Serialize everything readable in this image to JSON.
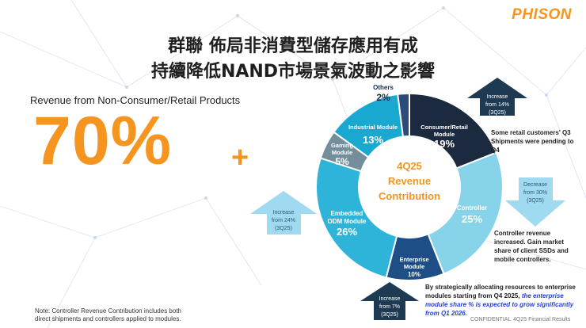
{
  "brand": "PHISON",
  "title_line1": "群聯 佈局非消費型儲存應用有成",
  "title_line2": "持續降低NAND市場景氣波動之影響",
  "subtitle": "Revenue from Non-Consumer/Retail Products",
  "big_value": "70%",
  "big_plus": "+",
  "note": "Note: Controller Revenue Contribution includes both direct shipments and controllers applied to modules.",
  "center_label": [
    "4Q25",
    "Revenue",
    "Contribution"
  ],
  "arrows": {
    "consumer": [
      "Increase",
      "from 14%",
      "(3Q25)"
    ],
    "controller": [
      "Decrease",
      "from 30%",
      "(3Q25)"
    ],
    "embedded": [
      "Increase",
      "from 24%",
      "(3Q25)"
    ],
    "enterprise": [
      "Increase",
      "from 7%",
      "(3Q25)"
    ]
  },
  "annotations": {
    "consumer": "Some retail customers' Q3 Shipments were pending to Q4",
    "controller": "Controller revenue increased. Gain market share of client SSDs and mobile controllers.",
    "enterprise_part1": "By strategically allocating resources to enterprise modules starting from Q4 2025, ",
    "enterprise_part2": "the enterprise module share % is expected to grow significantly from Q1 2026."
  },
  "footer": {
    "confidential": "CONFIDENTIAL",
    "results": "4Q25 Financial Results"
  },
  "colors": {
    "orange": "#f5951f",
    "navy": "#1b2a3f",
    "light_blue": "#87d3e9",
    "enterprise_blue": "#1d4f86",
    "teal": "#2fb4d9",
    "gray": "#758e9b",
    "arrow_dark": "#1e3a52",
    "arrow_light": "#9fdaf0"
  },
  "chart_data": {
    "type": "pie",
    "variant": "donut",
    "title": "4Q25 Revenue Contribution",
    "slices": [
      {
        "label": "Consumer/Retail Module",
        "value": 19,
        "display": "19%",
        "color": "#1b2a3f"
      },
      {
        "label": "Controller",
        "value": 25,
        "display": "25%",
        "color": "#87d3e9"
      },
      {
        "label": "Enterprise Module",
        "value": 10,
        "display": "10%",
        "color": "#1d4f86"
      },
      {
        "label": "Embedded ODM Module",
        "value": 26,
        "display": "26%",
        "color": "#2fb4d9"
      },
      {
        "label": "Gaming Module",
        "value": 5,
        "display": "5%",
        "color": "#758e9b"
      },
      {
        "label": "Industrial Module",
        "value": 13,
        "display": "13%",
        "color": "#18a8d0"
      },
      {
        "label": "Others",
        "value": 2,
        "display": "2%",
        "color": "#2c4a7a"
      }
    ]
  }
}
